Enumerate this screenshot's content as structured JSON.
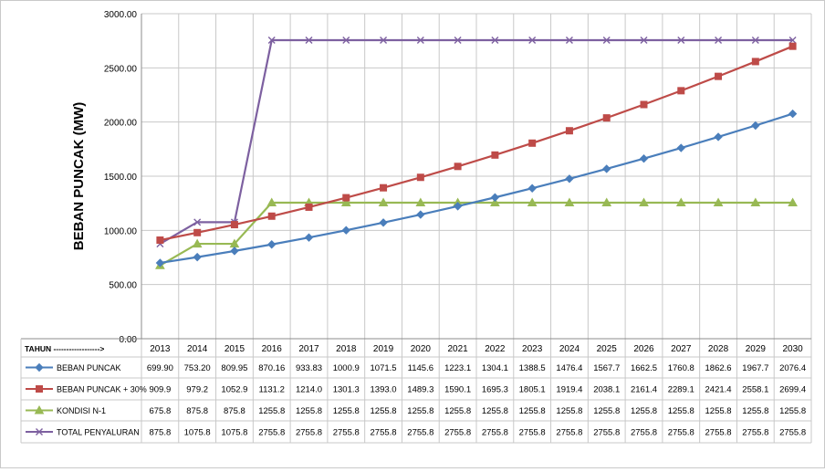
{
  "chart_data": {
    "type": "line",
    "ylabel": "BEBAN PUNCAK (MW)",
    "xlabel": "TAHUN ------------------>",
    "ylim": [
      0,
      3000
    ],
    "yticks": [
      "0.00",
      "500.00",
      "1000.00",
      "1500.00",
      "2000.00",
      "2500.00",
      "3000.00"
    ],
    "grid": true,
    "legend": "data-table-rows",
    "categories": [
      "2013",
      "2014",
      "2015",
      "2016",
      "2017",
      "2018",
      "2019",
      "2020",
      "2021",
      "2022",
      "2023",
      "2024",
      "2025",
      "2026",
      "2027",
      "2028",
      "2029",
      "2030"
    ],
    "series": [
      {
        "name": "BEBAN PUNCAK",
        "color": "#4a7ebb",
        "marker": "diamond",
        "values": [
          699.9,
          753.2,
          809.95,
          870.16,
          933.83,
          1000.9,
          1071.5,
          1145.6,
          1223.1,
          1304.1,
          1388.5,
          1476.4,
          1567.7,
          1662.5,
          1760.8,
          1862.6,
          1967.7,
          2076.4
        ],
        "labels": [
          "699.90",
          "753.20",
          "809.95",
          "870.16",
          "933.83",
          "1000.9",
          "1071.5",
          "1145.6",
          "1223.1",
          "1304.1",
          "1388.5",
          "1476.4",
          "1567.7",
          "1662.5",
          "1760.8",
          "1862.6",
          "1967.7",
          "2076.4"
        ]
      },
      {
        "name": "BEBAN PUNCAK + 30%",
        "color": "#be4b48",
        "marker": "square",
        "values": [
          909.9,
          979.2,
          1052.9,
          1131.2,
          1214.0,
          1301.3,
          1393.0,
          1489.3,
          1590.1,
          1695.3,
          1805.1,
          1919.4,
          2038.1,
          2161.4,
          2289.1,
          2421.4,
          2558.1,
          2699.4
        ],
        "labels": [
          "909.9",
          "979.2",
          "1052.9",
          "1131.2",
          "1214.0",
          "1301.3",
          "1393.0",
          "1489.3",
          "1590.1",
          "1695.3",
          "1805.1",
          "1919.4",
          "2038.1",
          "2161.4",
          "2289.1",
          "2421.4",
          "2558.1",
          "2699.4"
        ]
      },
      {
        "name": "KONDISI N-1",
        "color": "#98b954",
        "marker": "triangle",
        "values": [
          675.8,
          875.8,
          875.8,
          1255.8,
          1255.8,
          1255.8,
          1255.8,
          1255.8,
          1255.8,
          1255.8,
          1255.8,
          1255.8,
          1255.8,
          1255.8,
          1255.8,
          1255.8,
          1255.8,
          1255.8
        ],
        "labels": [
          "675.8",
          "875.8",
          "875.8",
          "1255.8",
          "1255.8",
          "1255.8",
          "1255.8",
          "1255.8",
          "1255.8",
          "1255.8",
          "1255.8",
          "1255.8",
          "1255.8",
          "1255.8",
          "1255.8",
          "1255.8",
          "1255.8",
          "1255.8"
        ]
      },
      {
        "name": "TOTAL PENYALURAN",
        "color": "#7d60a0",
        "marker": "x",
        "values": [
          875.8,
          1075.8,
          1075.8,
          2755.8,
          2755.8,
          2755.8,
          2755.8,
          2755.8,
          2755.8,
          2755.8,
          2755.8,
          2755.8,
          2755.8,
          2755.8,
          2755.8,
          2755.8,
          2755.8,
          2755.8
        ],
        "labels": [
          "875.8",
          "1075.8",
          "1075.8",
          "2755.8",
          "2755.8",
          "2755.8",
          "2755.8",
          "2755.8",
          "2755.8",
          "2755.8",
          "2755.8",
          "2755.8",
          "2755.8",
          "2755.8",
          "2755.8",
          "2755.8",
          "2755.8",
          "2755.8"
        ]
      }
    ]
  }
}
